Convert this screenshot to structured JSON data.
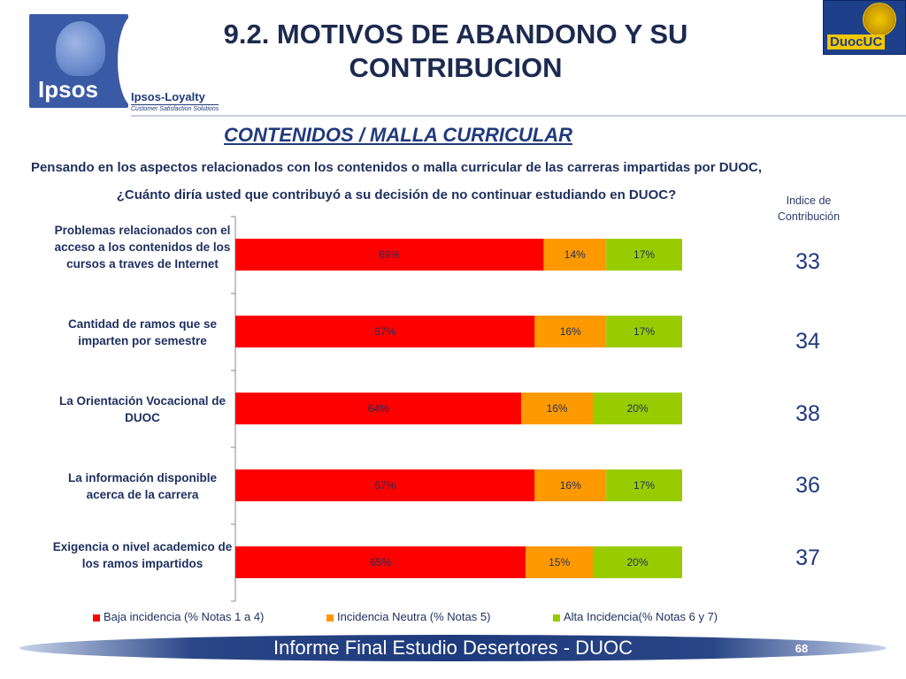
{
  "header": {
    "title": "9.2. MOTIVOS DE ABANDONO Y SU CONTRIBUCION",
    "section_title": "CONTENIDOS / MALLA CURRICULAR",
    "question": "Pensando en los aspectos relacionados con los contenidos o malla curricular de las carreras impartidas por DUOC, ¿Cuánto diría usted que contribuyó a su decisión de no continuar estudiando en DUOC?",
    "logos": {
      "ipsos": "Ipsos",
      "ipsos_loyalty": "Ipsos-Loyalty",
      "ipsos_tagline": "Customer Satisfaction Solutions",
      "duoc": "DuocUC"
    }
  },
  "index": {
    "header": "Indice de Contribución",
    "values": [
      "33",
      "34",
      "38",
      "36",
      "37"
    ]
  },
  "chart_data": {
    "type": "bar",
    "orientation": "horizontal",
    "stacked": true,
    "categories": [
      "Problemas relacionados con el acceso a los contenidos de los cursos a traves de Internet",
      "Cantidad de ramos que se imparten por semestre",
      "La Orientación Vocacional de DUOC",
      "La información disponible acerca de la carrera",
      "Exigencia o nivel academico de los ramos impartidos"
    ],
    "series": [
      {
        "name": "Baja incidencia (% Notas 1 a 4)",
        "color": "#ff0000",
        "values": [
          69,
          67,
          64,
          67,
          65
        ],
        "labels": [
          "69%",
          "67%",
          "64%",
          "67%",
          "65%"
        ]
      },
      {
        "name": "Incidencia Neutra (% Notas 5)",
        "color": "#ff9900",
        "values": [
          14,
          16,
          16,
          16,
          15
        ],
        "labels": [
          "14%",
          "16%",
          "16%",
          "16%",
          "15%"
        ]
      },
      {
        "name": "Alta Incidencia(% Notas 6 y 7)",
        "color": "#99cc00",
        "values": [
          17,
          17,
          20,
          17,
          20
        ],
        "labels": [
          "17%",
          "17%",
          "20%",
          "17%",
          "20%"
        ]
      }
    ],
    "xlim": [
      0,
      100
    ],
    "legend_position": "bottom",
    "grid": false
  },
  "footer": {
    "text": "Informe Final Estudio Desertores - DUOC",
    "page_number": "68"
  }
}
